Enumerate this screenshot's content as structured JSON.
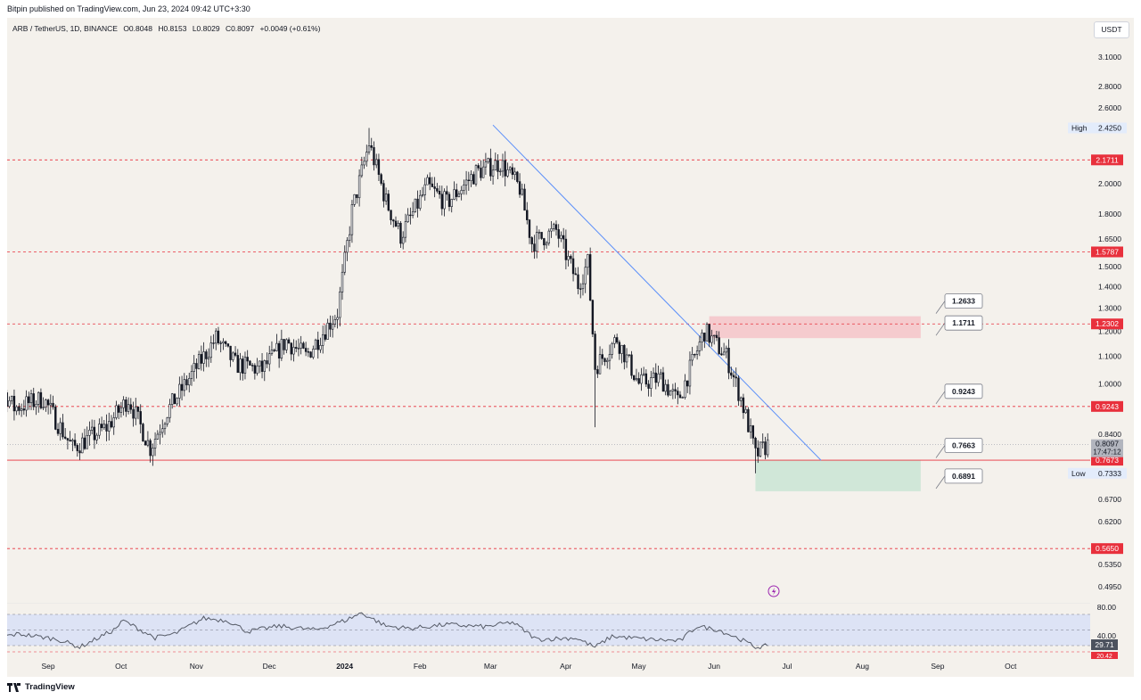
{
  "header": {
    "published": "Bitpin published on TradingView.com, Jun 23, 2024 09:42 UTC+3:30",
    "symbol": "ARB / TetherUS, 1D, BINANCE",
    "open": "O0.8048",
    "high": "H0.8153",
    "low": "L0.8029",
    "close": "C0.8097",
    "change": "+0.0049 (+0.61%)",
    "currency_button": "USDT"
  },
  "footer": {
    "brand": "TradingView"
  },
  "colors": {
    "background": "#f4f1ec",
    "up": "#131722",
    "down": "#131722",
    "level_line": "#e8303c",
    "trendline": "#5b8ff9",
    "supply_zone": "#f5c6cb",
    "demand_zone": "#cce6d6",
    "rsi_band": "#dde3f5",
    "rsi_line": "#555a66"
  },
  "chart_data": {
    "type": "candlestick",
    "scale": "log",
    "ylim": [
      0.47,
      3.25
    ],
    "y_ticks": [
      "3.1000",
      "2.8000",
      "2.6000",
      "2.0000",
      "1.8000",
      "1.6500",
      "1.5000",
      "1.4000",
      "1.3000",
      "1.2000",
      "1.1000",
      "1.0000",
      "0.8400",
      "0.6700",
      "0.6200",
      "0.5350",
      "0.4950"
    ],
    "x_ticks": [
      "Sep",
      "Oct",
      "Nov",
      "Dec",
      "2024",
      "Feb",
      "Mar",
      "Apr",
      "May",
      "Jun",
      "Jul",
      "Aug",
      "Sep",
      "Oct"
    ],
    "x_tick_months": [
      "2023-09",
      "2023-10",
      "2023-11",
      "2023-12",
      "2024-01",
      "2024-02",
      "2024-03",
      "2024-04",
      "2024-05",
      "2024-06",
      "2024-07",
      "2024-08",
      "2024-09",
      "2024-10"
    ],
    "key_price_path": [
      [
        "2023-08-01",
        1.13
      ],
      [
        "2023-08-18",
        0.92
      ],
      [
        "2023-08-30",
        0.95
      ],
      [
        "2023-09-11",
        0.8
      ],
      [
        "2023-09-25",
        0.86
      ],
      [
        "2023-10-04",
        0.95
      ],
      [
        "2023-10-13",
        0.8
      ],
      [
        "2023-10-20",
        0.91
      ],
      [
        "2023-11-09",
        1.17
      ],
      [
        "2023-11-17",
        1.07
      ],
      [
        "2023-11-28",
        1.05
      ],
      [
        "2023-12-08",
        1.16
      ],
      [
        "2023-12-16",
        1.1
      ],
      [
        "2023-12-29",
        1.28
      ],
      [
        "2024-01-04",
        1.82
      ],
      [
        "2024-01-11",
        2.3
      ],
      [
        "2024-01-18",
        1.88
      ],
      [
        "2024-01-24",
        1.67
      ],
      [
        "2024-02-04",
        1.98
      ],
      [
        "2024-02-12",
        1.87
      ],
      [
        "2024-02-24",
        2.08
      ],
      [
        "2024-03-05",
        2.15
      ],
      [
        "2024-03-13",
        1.97
      ],
      [
        "2024-03-18",
        1.63
      ],
      [
        "2024-03-28",
        1.7
      ],
      [
        "2024-04-06",
        1.41
      ],
      [
        "2024-04-10",
        1.52
      ],
      [
        "2024-04-13",
        1.06
      ],
      [
        "2024-04-22",
        1.17
      ],
      [
        "2024-05-01",
        1.0
      ],
      [
        "2024-05-10",
        1.02
      ],
      [
        "2024-05-17",
        0.94
      ],
      [
        "2024-05-28",
        1.2
      ],
      [
        "2024-06-06",
        1.1
      ],
      [
        "2024-06-12",
        0.95
      ],
      [
        "2024-06-16",
        0.84
      ],
      [
        "2024-06-18",
        0.78
      ],
      [
        "2024-06-23",
        0.8097
      ]
    ],
    "levels": [
      {
        "price": 2.1711,
        "label": "2.1711"
      },
      {
        "price": 1.5787,
        "label": "1.5787"
      },
      {
        "price": 1.2302,
        "label": "1.2302"
      },
      {
        "price": 0.9243,
        "label": "0.9243"
      },
      {
        "price": 0.565,
        "label": "0.5650"
      }
    ],
    "support_line": {
      "price": 0.7673,
      "label": "0.7673"
    },
    "last_price": {
      "price": 0.8097,
      "label": "0.8097",
      "countdown": "17:47:12"
    },
    "high_marker": {
      "text": "High",
      "price": 2.425,
      "label": "2.4250"
    },
    "low_marker": {
      "text": "Low",
      "price": 0.7333,
      "label": "0.7333"
    },
    "trendline": {
      "start": [
        "2024-03-02",
        2.45
      ],
      "end": [
        "2024-07-15",
        0.767
      ]
    },
    "supply_zone": {
      "from": "2024-05-30",
      "to": "2024-08-25",
      "top": 1.2633,
      "bottom": 1.1711
    },
    "demand_zone": {
      "from": "2024-06-18",
      "to": "2024-08-25",
      "top": 0.7663,
      "bottom": 0.6891
    },
    "callouts": [
      {
        "label": "1.2633",
        "price": 1.2633
      },
      {
        "label": "1.1711",
        "price": 1.1711
      },
      {
        "label": "0.9243",
        "price": 0.9243
      },
      {
        "label": "0.7663",
        "price": 0.7663
      },
      {
        "label": "0.6891",
        "price": 0.6891
      }
    ],
    "rsi": {
      "ticks": [
        "80.00",
        "40.00"
      ],
      "band": [
        30,
        70
      ],
      "value_label": "29.71",
      "lower_label": "20.42",
      "path": [
        [
          "2023-08-01",
          35
        ],
        [
          "2023-08-20",
          45
        ],
        [
          "2023-09-05",
          38
        ],
        [
          "2023-09-14",
          28
        ],
        [
          "2023-09-28",
          50
        ],
        [
          "2023-10-02",
          62
        ],
        [
          "2023-10-15",
          40
        ],
        [
          "2023-10-23",
          45
        ],
        [
          "2023-11-04",
          65
        ],
        [
          "2023-11-14",
          62
        ],
        [
          "2023-11-22",
          48
        ],
        [
          "2023-12-05",
          55
        ],
        [
          "2023-12-20",
          50
        ],
        [
          "2024-01-01",
          62
        ],
        [
          "2024-01-08",
          72
        ],
        [
          "2024-01-18",
          55
        ],
        [
          "2024-01-28",
          52
        ],
        [
          "2024-02-12",
          57
        ],
        [
          "2024-02-28",
          54
        ],
        [
          "2024-03-10",
          60
        ],
        [
          "2024-03-20",
          38
        ],
        [
          "2024-04-05",
          40
        ],
        [
          "2024-04-13",
          28
        ],
        [
          "2024-04-20",
          42
        ],
        [
          "2024-05-05",
          38
        ],
        [
          "2024-05-18",
          36
        ],
        [
          "2024-05-25",
          55
        ],
        [
          "2024-06-03",
          50
        ],
        [
          "2024-06-12",
          38
        ],
        [
          "2024-06-18",
          28
        ],
        [
          "2024-06-23",
          29.71
        ]
      ]
    }
  }
}
